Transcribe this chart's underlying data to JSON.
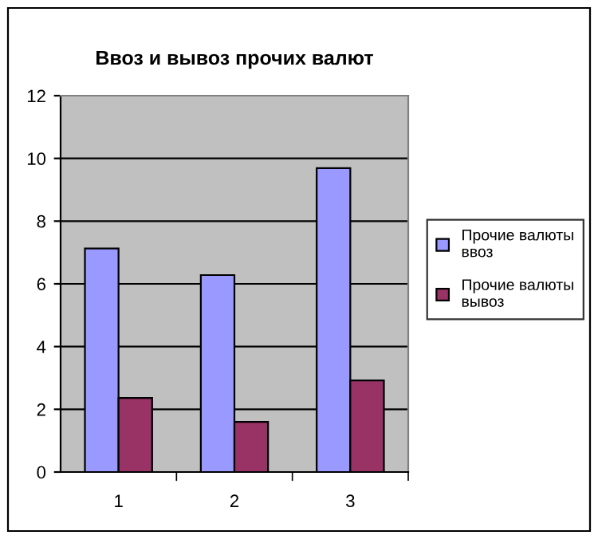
{
  "chart_data": {
    "type": "bar",
    "title": "Ввоз и вывоз прочих валют",
    "categories": [
      "1",
      "2",
      "3"
    ],
    "series": [
      {
        "name": "Прочие валюты ввоз",
        "color": "#9999ff",
        "values": [
          7.13,
          6.28,
          9.69
        ]
      },
      {
        "name": "Прочие валюты вывоз",
        "color": "#993366",
        "values": [
          2.36,
          1.6,
          2.92
        ]
      }
    ],
    "ylim": [
      0,
      12
    ],
    "yticks": [
      0,
      2,
      4,
      6,
      8,
      10,
      12
    ],
    "grid": "y",
    "legend": "right"
  }
}
